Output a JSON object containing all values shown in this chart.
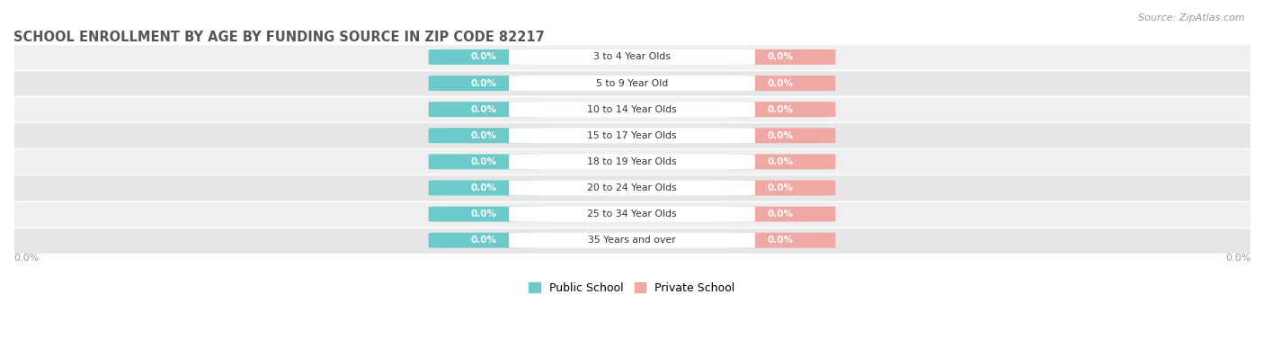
{
  "title": "SCHOOL ENROLLMENT BY AGE BY FUNDING SOURCE IN ZIP CODE 82217",
  "source": "Source: ZipAtlas.com",
  "categories": [
    "3 to 4 Year Olds",
    "5 to 9 Year Old",
    "10 to 14 Year Olds",
    "15 to 17 Year Olds",
    "18 to 19 Year Olds",
    "20 to 24 Year Olds",
    "25 to 34 Year Olds",
    "35 Years and over"
  ],
  "public_values": [
    0.0,
    0.0,
    0.0,
    0.0,
    0.0,
    0.0,
    0.0,
    0.0
  ],
  "private_values": [
    0.0,
    0.0,
    0.0,
    0.0,
    0.0,
    0.0,
    0.0,
    0.0
  ],
  "public_color": "#6DCACB",
  "private_color": "#F0A8A4",
  "row_bg_light": "#EFEFEF",
  "row_bg_dark": "#E6E6E6",
  "title_fontsize": 10.5,
  "source_fontsize": 8,
  "legend_public": "Public School",
  "legend_private": "Private School",
  "axis_label_left": "0.0%",
  "axis_label_right": "0.0%",
  "bar_label": "0.0%"
}
